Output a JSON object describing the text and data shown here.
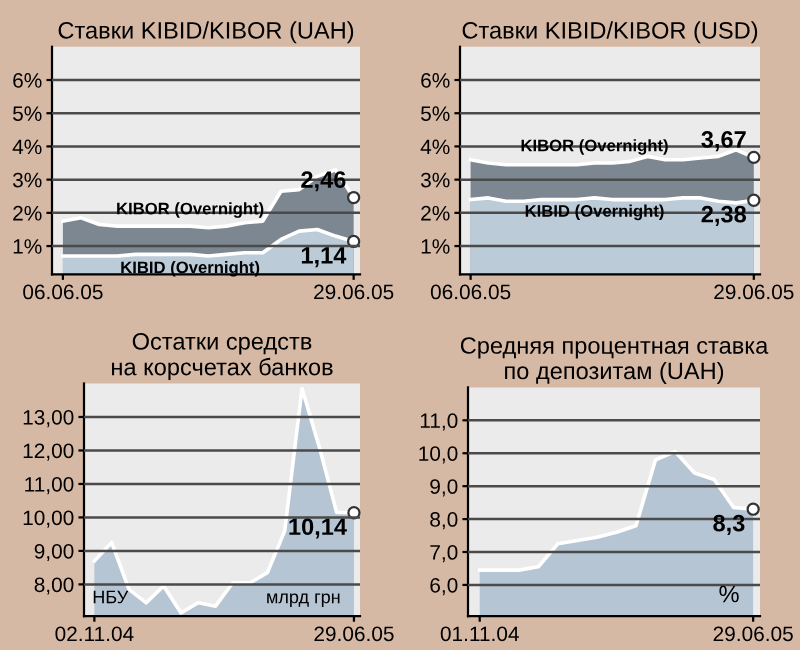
{
  "chart_data": [
    {
      "type": "area",
      "title": "Ставки KIBID/KIBOR (UAH)",
      "categories": [
        "06.06.05",
        null,
        null,
        null,
        null,
        null,
        null,
        null,
        null,
        null,
        null,
        null,
        null,
        null,
        null,
        null,
        "29.06.05"
      ],
      "ylim": [
        0.15,
        7.0
      ],
      "yticks": [
        {
          "value": 1,
          "label": "1%"
        },
        {
          "value": 2,
          "label": "2%"
        },
        {
          "value": 3,
          "label": "3%"
        },
        {
          "value": 4,
          "label": "4%"
        },
        {
          "value": 5,
          "label": "5%"
        },
        {
          "value": 6,
          "label": "6%"
        }
      ],
      "grid": "y",
      "series": [
        {
          "name": "KIBOR (Overnight)",
          "color": "#7d8791",
          "values": [
            1.75,
            1.85,
            1.65,
            1.6,
            1.6,
            1.6,
            1.6,
            1.6,
            1.55,
            1.6,
            1.7,
            1.75,
            2.65,
            2.7,
            3.1,
            3.3,
            2.46
          ],
          "value_labels": [
            null,
            null,
            null,
            null,
            null,
            null,
            null,
            null,
            null,
            null,
            null,
            null,
            null,
            null,
            null,
            null,
            "2,46"
          ]
        },
        {
          "name": "KIBID (Overnight)",
          "color": "#bccbd8",
          "values": [
            0.7,
            0.7,
            0.7,
            0.7,
            0.75,
            0.75,
            0.75,
            0.75,
            0.7,
            0.75,
            0.8,
            0.8,
            1.2,
            1.45,
            1.5,
            1.3,
            1.14
          ],
          "value_labels": [
            null,
            null,
            null,
            null,
            null,
            null,
            null,
            null,
            null,
            null,
            null,
            null,
            null,
            null,
            null,
            null,
            "1,14"
          ]
        }
      ]
    },
    {
      "type": "area",
      "title": "Ставки KIBID/KIBOR (USD)",
      "categories": [
        "06.06.05",
        null,
        null,
        null,
        null,
        null,
        null,
        null,
        null,
        null,
        null,
        null,
        null,
        null,
        null,
        null,
        "29.06.05"
      ],
      "ylim": [
        0.15,
        7.0
      ],
      "yticks": [
        {
          "value": 1,
          "label": "1%"
        },
        {
          "value": 2,
          "label": "2%"
        },
        {
          "value": 3,
          "label": "3%"
        },
        {
          "value": 4,
          "label": "4%"
        },
        {
          "value": 5,
          "label": "5%"
        },
        {
          "value": 6,
          "label": "6%"
        }
      ],
      "grid": "y",
      "series": [
        {
          "name": "KIBOR (Overnight)",
          "color": "#7d8791",
          "values": [
            3.6,
            3.5,
            3.45,
            3.45,
            3.45,
            3.45,
            3.45,
            3.5,
            3.5,
            3.55,
            3.7,
            3.6,
            3.6,
            3.65,
            3.7,
            3.9,
            3.67
          ],
          "value_labels": [
            null,
            null,
            null,
            null,
            null,
            null,
            null,
            null,
            null,
            null,
            null,
            null,
            null,
            null,
            null,
            null,
            "3,67"
          ]
        },
        {
          "name": "KIBID (Overnight)",
          "color": "#bccbd8",
          "values": [
            2.4,
            2.45,
            2.35,
            2.35,
            2.4,
            2.4,
            2.4,
            2.45,
            2.4,
            2.4,
            2.4,
            2.4,
            2.45,
            2.45,
            2.35,
            2.3,
            2.38
          ],
          "value_labels": [
            null,
            null,
            null,
            null,
            null,
            null,
            null,
            null,
            null,
            null,
            null,
            null,
            null,
            null,
            null,
            null,
            "2,38"
          ]
        }
      ]
    },
    {
      "type": "area",
      "title": "Остатки средств\nна корсчетах банков",
      "categories": [
        "02.11.04",
        null,
        null,
        null,
        null,
        null,
        null,
        null,
        null,
        null,
        null,
        null,
        null,
        null,
        null,
        "29.06.05"
      ],
      "ylim": [
        7.05,
        14.0
      ],
      "yticks": [
        {
          "value": 8,
          "label": "8,00"
        },
        {
          "value": 9,
          "label": "9,00"
        },
        {
          "value": 10,
          "label": "10,00"
        },
        {
          "value": 11,
          "label": "11,00"
        },
        {
          "value": 12,
          "label": "12,00"
        },
        {
          "value": 13,
          "label": "13,00"
        }
      ],
      "grid": "y",
      "annotations": [
        "НБУ",
        "млрд грн"
      ],
      "series": [
        {
          "color": "#b6c5d3",
          "values": [
            8.7,
            9.25,
            7.85,
            7.45,
            7.95,
            7.15,
            7.45,
            7.35,
            8.05,
            8.05,
            8.35,
            9.6,
            13.85,
            12.1,
            10.15,
            10.14
          ],
          "value_labels": [
            null,
            null,
            null,
            null,
            null,
            null,
            null,
            null,
            null,
            null,
            null,
            null,
            null,
            null,
            null,
            "10,14"
          ]
        }
      ]
    },
    {
      "type": "area",
      "title": "Средняя процентная ставка\nпо депозитам (UAH)",
      "categories": [
        "01.11.04",
        null,
        null,
        null,
        null,
        null,
        null,
        null,
        null,
        null,
        null,
        null,
        null,
        null,
        "29.06.05"
      ],
      "ylim": [
        5.05,
        12.0
      ],
      "yticks": [
        {
          "value": 6,
          "label": "6,0"
        },
        {
          "value": 7,
          "label": "7,0"
        },
        {
          "value": 8,
          "label": "8,0"
        },
        {
          "value": 9,
          "label": "9,0"
        },
        {
          "value": 10,
          "label": "10,0"
        },
        {
          "value": 11,
          "label": "11,0"
        }
      ],
      "grid": "y",
      "annotations": [
        "%"
      ],
      "series": [
        {
          "color": "#b6c5d3",
          "values": [
            6.45,
            6.45,
            6.45,
            6.55,
            7.25,
            7.35,
            7.45,
            7.6,
            7.8,
            9.8,
            10.05,
            9.4,
            9.2,
            8.35,
            8.3
          ],
          "value_labels": [
            null,
            null,
            null,
            null,
            null,
            null,
            null,
            null,
            null,
            null,
            null,
            null,
            null,
            null,
            "8,3"
          ]
        }
      ]
    }
  ]
}
